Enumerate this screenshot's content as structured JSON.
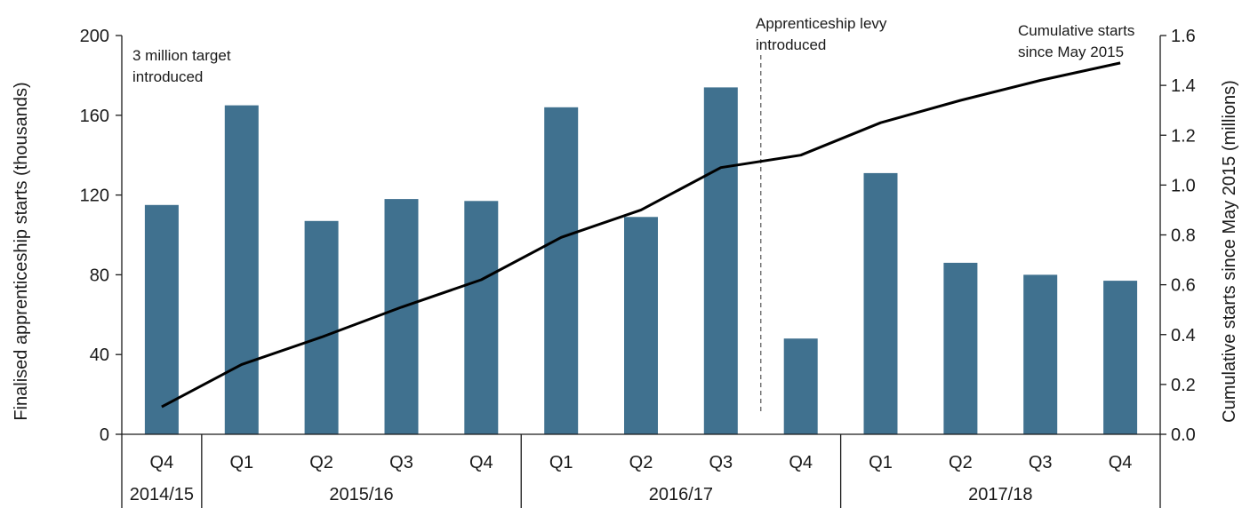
{
  "chart_data": {
    "type": "bar",
    "title": "",
    "categories": [
      "Q4",
      "Q1",
      "Q2",
      "Q3",
      "Q4",
      "Q1",
      "Q2",
      "Q3",
      "Q4",
      "Q1",
      "Q2",
      "Q3",
      "Q4"
    ],
    "groups": [
      {
        "label": "2014/15",
        "count": 1
      },
      {
        "label": "2015/16",
        "count": 4
      },
      {
        "label": "2016/17",
        "count": 4
      },
      {
        "label": "2017/18",
        "count": 4
      }
    ],
    "series": [
      {
        "type": "bar",
        "axis": "left",
        "values": [
          115,
          165,
          107,
          118,
          117,
          164,
          109,
          174,
          48,
          131,
          86,
          80,
          77
        ]
      },
      {
        "type": "line",
        "axis": "right",
        "name": "Cumulative starts since May 2015",
        "values": [
          0.11,
          0.28,
          0.39,
          0.51,
          0.62,
          0.79,
          0.9,
          1.07,
          1.12,
          1.25,
          1.34,
          1.42,
          1.49
        ]
      }
    ],
    "ylabel": "Finalised apprenticeship starts (thousands)",
    "ylim": [
      0,
      200
    ],
    "yticks": [
      "0",
      "40",
      "80",
      "120",
      "160",
      "200"
    ],
    "y2label": "Cumulative starts since May 2015  (millions)",
    "y2lim": [
      0,
      1.6
    ],
    "y2ticks": [
      "0.0",
      "0.2",
      "0.4",
      "0.6",
      "0.8",
      "1.0",
      "1.2",
      "1.4",
      "1.6"
    ],
    "annotations": {
      "target_line1": "3 million target",
      "target_line2": "introduced",
      "levy_line1": "Apprenticeship  levy",
      "levy_line2": "introduced",
      "cumulative_line1": "Cumulative  starts",
      "cumulative_line2": "since May 2015"
    },
    "levy_marker_after_index": 7,
    "grid": false,
    "colors": {
      "bar": "#40718F",
      "line": "#000000",
      "axis": "#1a1a1a"
    }
  }
}
